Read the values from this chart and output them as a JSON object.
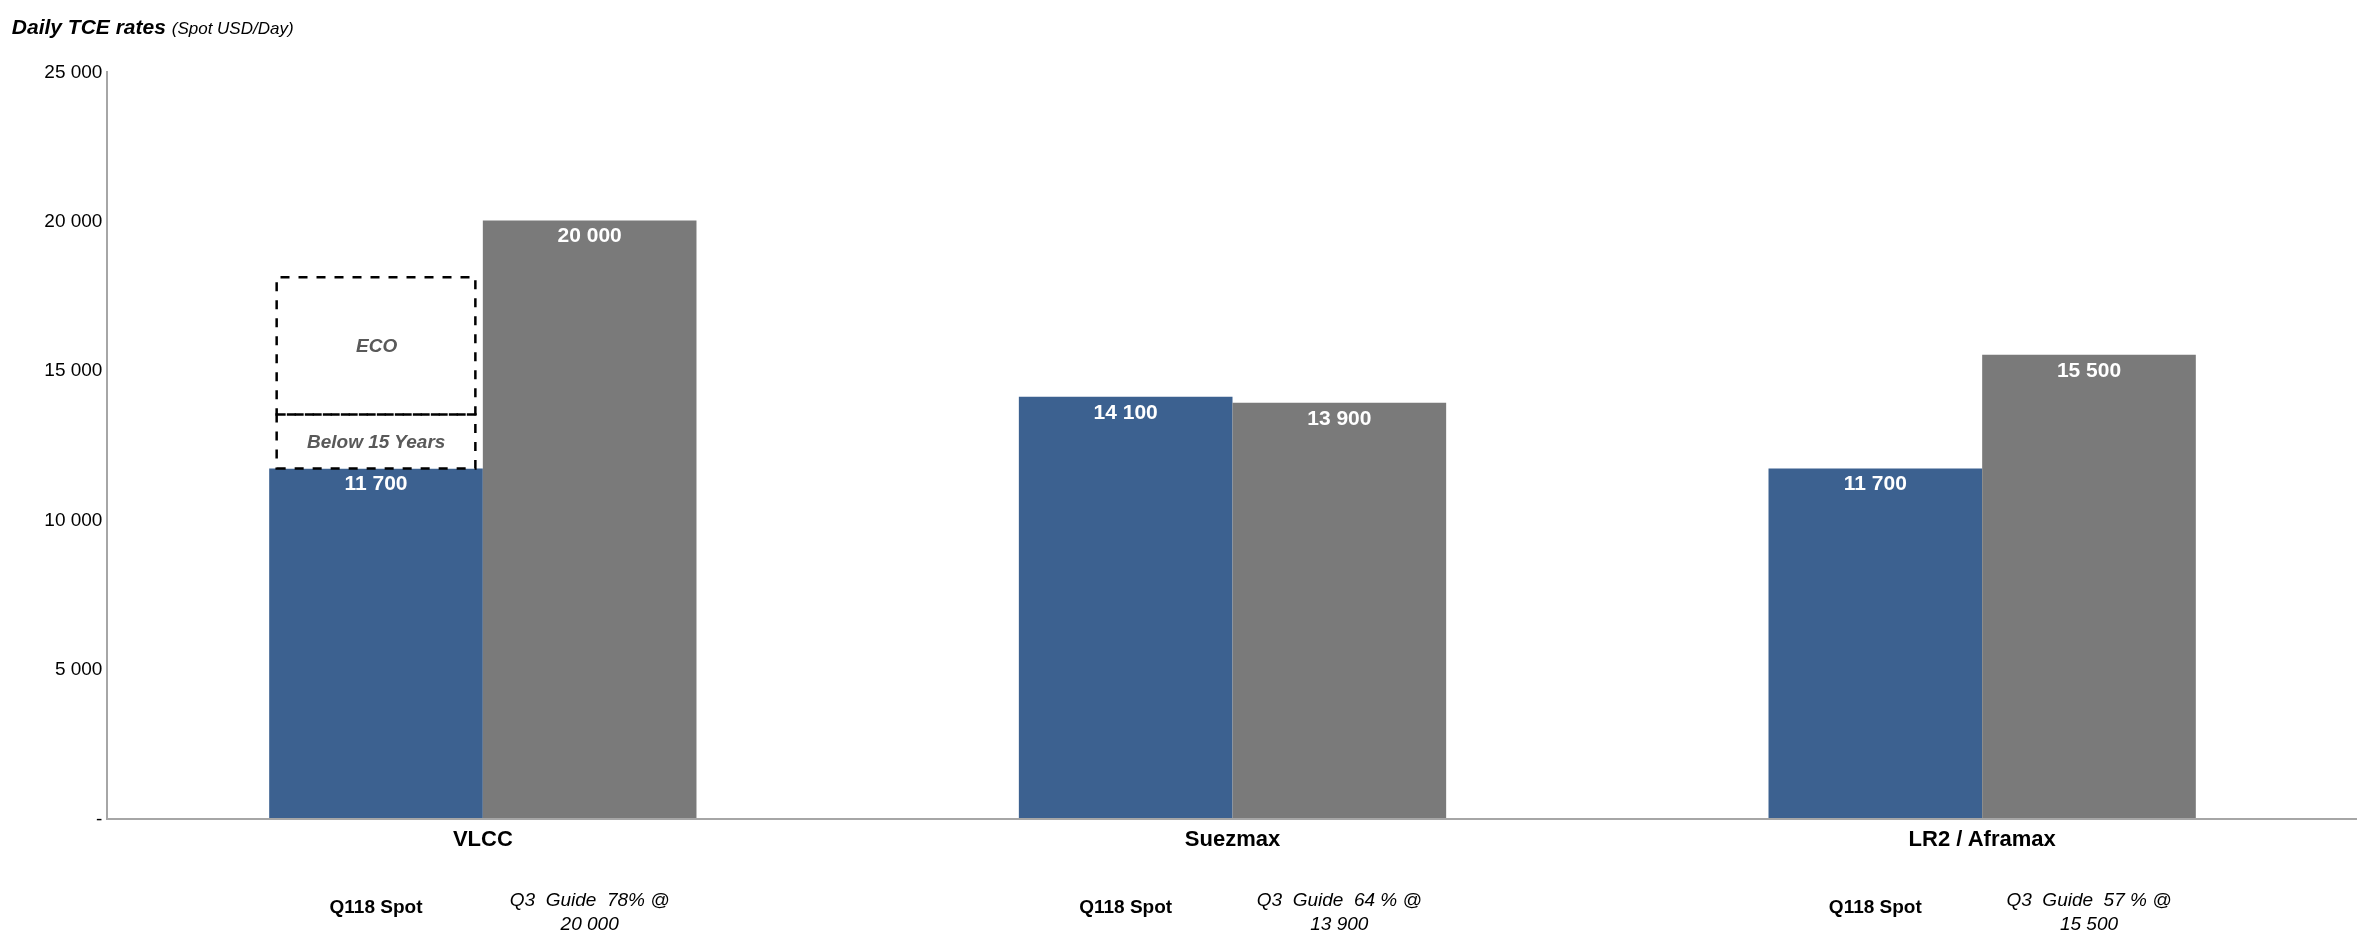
{
  "chart_data": {
    "type": "bar",
    "title": "Daily TCE rates",
    "subtitle": "(Spot USD/Day)",
    "categories": [
      "VLCC",
      "Suezmax",
      "LR2 / Aframax"
    ],
    "series": [
      {
        "color": "#3c6190",
        "values": [
          11700,
          14100,
          11700
        ],
        "value_labels": [
          "11 700",
          "14 100",
          "11 700"
        ]
      },
      {
        "color": "#7a7a7a",
        "values": [
          20000,
          13900,
          15500
        ],
        "value_labels": [
          "20 000",
          "13 900",
          "15 500"
        ]
      },
      {
        "name": "Below 15 Years",
        "color": "#ffffff",
        "values": [
          1800,
          null,
          null
        ],
        "base": [
          11700,
          null,
          null
        ],
        "line_style": "dashed"
      },
      {
        "name": "ECO",
        "color": "#ffffff",
        "values": [
          4600,
          null,
          null
        ],
        "base": [
          13500,
          null,
          null
        ],
        "line_style": "dashed"
      }
    ],
    "annotations": [
      "Q118 Spot",
      "Q3  Guide  78% @ 20 000",
      "Q118 Spot",
      "Q3  Guide  64 % @ 13 900",
      "Q118 Spot",
      "Q3  Guide  57 % @ 15 500"
    ],
    "ylim": [
      0,
      25000
    ],
    "yticks": [
      {
        "value": 0,
        "label": "-"
      },
      {
        "value": 5000,
        "label": "5 000"
      },
      {
        "value": 10000,
        "label": "10 000"
      },
      {
        "value": 15000,
        "label": "15 000"
      },
      {
        "value": 20000,
        "label": "20 000"
      },
      {
        "value": 25000,
        "label": "25 000"
      }
    ],
    "grid": false
  }
}
